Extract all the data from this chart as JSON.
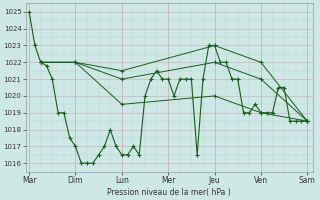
{
  "background_color": "#cde8e5",
  "grid_major_color": "#b8d4d0",
  "grid_minor_color": "#d8e8e6",
  "line_color": "#1a5c1a",
  "x_labels": [
    "Mar",
    "Dim",
    "Lun",
    "Mer",
    "Jeu",
    "Ven",
    "Sam"
  ],
  "x_tick_pos": [
    0,
    4,
    8,
    12,
    16,
    20,
    24
  ],
  "ylabel": "Pression niveau de la mer( hPa )",
  "ylim": [
    1015.5,
    1025.5
  ],
  "yticks": [
    1016,
    1017,
    1018,
    1019,
    1020,
    1021,
    1022,
    1023,
    1024,
    1025
  ],
  "line1_x": [
    0,
    0.5,
    1,
    1.5,
    2,
    2.5,
    3,
    3.5,
    4,
    4.5,
    5,
    5.5,
    6,
    6.5,
    7,
    7.5,
    8,
    8.5,
    9,
    9.5,
    10,
    10.5,
    11,
    11.5,
    12,
    12.5,
    13,
    13.5,
    14,
    14.5,
    15,
    15.5,
    16,
    16.5,
    17,
    17.5,
    18,
    18.5,
    19,
    19.5,
    20,
    20.5,
    21,
    21.5,
    22,
    22.5,
    23,
    23.5,
    24
  ],
  "line1_y": [
    1025,
    1023,
    1022,
    1021.8,
    1021,
    1019,
    1019,
    1017.5,
    1017,
    1016,
    1016,
    1016,
    1016.5,
    1017,
    1018,
    1017,
    1016.5,
    1016.5,
    1017,
    1016.5,
    1020,
    1021,
    1021.5,
    1021,
    1021,
    1020,
    1021,
    1021,
    1021,
    1016.5,
    1021,
    1023,
    1023,
    1022,
    1022,
    1021,
    1021,
    1019,
    1019,
    1019.5,
    1019,
    1019,
    1019,
    1020.5,
    1020.5,
    1018.5,
    1018.5,
    1018.5,
    1018.5
  ],
  "line2_x": [
    1,
    4,
    8,
    16,
    20,
    24
  ],
  "line2_y": [
    1022,
    1022,
    1021.5,
    1023,
    1022,
    1018.5
  ],
  "line3_x": [
    1,
    4,
    8,
    16,
    20,
    24
  ],
  "line3_y": [
    1022,
    1022,
    1021,
    1022,
    1021,
    1018.5
  ],
  "line4_x": [
    1,
    4,
    8,
    16,
    20,
    24
  ],
  "line4_y": [
    1022,
    1022,
    1019.5,
    1020,
    1019,
    1018.5
  ]
}
